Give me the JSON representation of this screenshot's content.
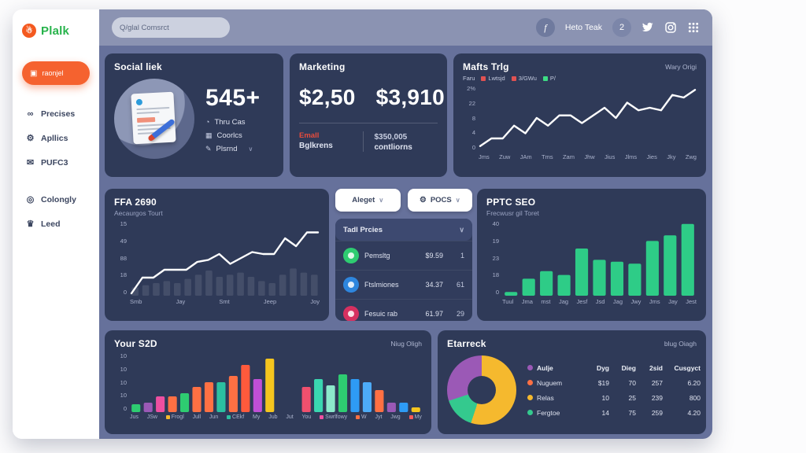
{
  "sidebar": {
    "logo_text": "Plalk",
    "active": {
      "label": "raonjel"
    },
    "items": [
      {
        "id": "precises",
        "icon": "nodes-icon",
        "glyph": "∞",
        "label": "Precises",
        "gap_before": false
      },
      {
        "id": "apllics",
        "icon": "gear-icon",
        "glyph": "⚙",
        "label": "Apllics",
        "gap_before": false
      },
      {
        "id": "pufc3",
        "icon": "mail-icon",
        "glyph": "✉",
        "label": "PUFC3",
        "gap_before": false
      },
      {
        "id": "colongly",
        "icon": "target-icon",
        "glyph": "◎",
        "label": "Colongly",
        "gap_before": true
      },
      {
        "id": "leed",
        "icon": "crown-icon",
        "glyph": "♛",
        "label": "Leed",
        "gap_before": false
      }
    ]
  },
  "header": {
    "search_placeholder": "Q/glal Comsrct",
    "user_name": "Heto Teak",
    "badge_count": "2"
  },
  "social": {
    "title": "Social liek",
    "count": "545+",
    "items": [
      {
        "icon": "clock-icon",
        "glyph": "◔",
        "label": "Thru Cas",
        "chevron": false
      },
      {
        "icon": "calendar-icon",
        "glyph": "▦",
        "label": "Coorlcs",
        "chevron": false
      },
      {
        "icon": "pen-icon",
        "glyph": "✎",
        "label": "Plsrnd",
        "chevron": true
      }
    ]
  },
  "marketing": {
    "title": "Marketing",
    "value_left": "$2,50",
    "value_right": "$3,910",
    "foot_left_top": "Emall",
    "foot_left_bottom": "Bglkrens",
    "foot_right_top": "$350,005",
    "foot_right_bottom": "contliorns"
  },
  "mafts": {
    "title": "Mafts Trlg",
    "corner": "Wary Origi",
    "legend_prefix": "Faru",
    "legend": [
      {
        "label": "Lwtsjd",
        "color": "#e05252"
      },
      {
        "label": "3/GWu",
        "color": "#e05252"
      },
      {
        "label": "P/",
        "color": "#3ddc84"
      }
    ]
  },
  "ffa": {
    "title": "FFA 2690",
    "subtitle": "Aecaurgos Tourt"
  },
  "tools": {
    "dropdown1": "Aleget",
    "dropdown2": "POCS",
    "list_header": "Tadl Prcies",
    "rows": [
      {
        "color": "#2ecc71",
        "name": "Pemsltg",
        "value": "$9.59",
        "count": "1"
      },
      {
        "color": "#2e86de",
        "name": "Ftslmiones",
        "value": "34.37",
        "count": "61"
      },
      {
        "color": "#d63060",
        "name": "Fesuic rab",
        "value": "61.97",
        "count": "29"
      }
    ]
  },
  "pptc": {
    "title": "PPTC SEO",
    "subtitle": "Frecwusr gil Toret"
  },
  "s2d": {
    "title": "Your S2D",
    "corner": "Niug Oligh"
  },
  "etarreck": {
    "title": "Etarreck",
    "corner": "blug Oiagh",
    "table": {
      "header": {
        "dot": "#9b59b6",
        "name": "Aulje",
        "cols": [
          "Dyg",
          "Dieg",
          "2sid",
          "Cusgyct"
        ]
      },
      "rows": [
        {
          "dot": "#ff7043",
          "name": "Nuguem",
          "cols": [
            "$19",
            "70",
            "257",
            "6.20"
          ]
        },
        {
          "dot": "#f5b92e",
          "name": "Relas",
          "cols": [
            "10",
            "25",
            "239",
            "800"
          ]
        },
        {
          "dot": "#34c98e",
          "name": "Fergtoe",
          "cols": [
            "14",
            "75",
            "259",
            "4.20"
          ]
        }
      ]
    }
  },
  "chart_data": [
    {
      "id": "mafts",
      "type": "line",
      "title": "Mafts Trlg",
      "values": [
        1,
        4,
        4,
        9,
        6,
        12,
        9,
        13,
        13,
        10,
        13,
        16,
        12,
        18,
        15,
        16,
        15,
        21,
        20,
        23
      ],
      "ylim": [
        0,
        24
      ],
      "yticks": [
        "2%",
        "22",
        "8",
        "4",
        "0"
      ],
      "xlabels": [
        "Jms",
        "Zuw",
        "JAm",
        "Tms",
        "Zam",
        "Jhw",
        "Jius",
        "Jlms",
        "Jies",
        "Jky",
        "Zwg"
      ],
      "line_color": "#ffffff",
      "grid": false,
      "legend_position": "top-left"
    },
    {
      "id": "ffa",
      "type": "line",
      "title": "FFA 2690",
      "values": [
        0,
        8,
        8,
        12,
        12,
        12,
        16,
        17,
        20,
        15,
        18,
        21,
        20,
        20,
        28,
        24,
        31,
        31
      ],
      "bars": [
        4,
        5,
        6,
        7,
        6,
        8,
        10,
        12,
        9,
        10,
        11,
        9,
        7,
        6,
        10,
        13,
        11,
        10
      ],
      "ylim": [
        0,
        36
      ],
      "yticks": [
        "15",
        "49",
        "88",
        "18",
        "0"
      ],
      "xlabels": [
        "Smb",
        "Jay",
        "Smt",
        "Jeep",
        "Joy"
      ],
      "line_color": "#ffffff",
      "bar_color": "rgba(255,255,255,0.10)"
    },
    {
      "id": "pptc",
      "type": "bar",
      "title": "PPTC SEO",
      "values": [
        2,
        9,
        13,
        11,
        25,
        19,
        18,
        17,
        29,
        32,
        38
      ],
      "ylim": [
        0,
        40
      ],
      "yticks": [
        "40",
        "19",
        "23",
        "18",
        "0"
      ],
      "xlabels": [
        "Tuul",
        "Jma",
        "mst",
        "Jag",
        "Jesf",
        "Jsd",
        "Jag",
        "Jwy",
        "Jms",
        "Jay",
        "Jest"
      ],
      "bar_color": "#2ecc87"
    },
    {
      "id": "s2d",
      "type": "bar",
      "title": "Your S2D",
      "ylim": [
        0,
        38
      ],
      "yticks": [
        "10",
        "10",
        "10",
        "10",
        "0"
      ],
      "series": [
        {
          "v": 5,
          "c": "#2ecc71"
        },
        {
          "v": 6,
          "c": "#9b59b6"
        },
        {
          "v": 10,
          "c": "#ee4fa1"
        },
        {
          "v": 10,
          "c": "#ff7043"
        },
        {
          "v": 12,
          "c": "#2ecc71"
        },
        {
          "v": 16,
          "c": "#ff7043"
        },
        {
          "v": 19,
          "c": "#ff7043"
        },
        {
          "v": 19,
          "c": "#2bbfa0"
        },
        {
          "v": 23,
          "c": "#ff7043"
        },
        {
          "v": 30,
          "c": "#ff5a3c"
        },
        {
          "v": 21,
          "c": "#c04fd6"
        },
        {
          "v": 34,
          "c": "#f5c51e"
        },
        null,
        null,
        {
          "v": 16,
          "c": "#f0506e"
        },
        {
          "v": 21,
          "c": "#3ad6b0"
        },
        {
          "v": 17,
          "c": "#8ce8cb"
        },
        {
          "v": 24,
          "c": "#2ecc71"
        },
        {
          "v": 21,
          "c": "#2e9bf5"
        },
        {
          "v": 19,
          "c": "#4dabf7"
        },
        {
          "v": 14,
          "c": "#ff7043"
        },
        {
          "v": 6,
          "c": "#9b59b6"
        },
        {
          "v": 6,
          "c": "#2e9bf5"
        },
        {
          "v": 3,
          "c": "#f5c51e"
        }
      ],
      "xlabels": [
        {
          "t": "Jus"
        },
        {
          "t": "JSw"
        },
        {
          "t": "Frogl",
          "dot": "#f5b92e"
        },
        {
          "t": "Jull"
        },
        {
          "t": "Jun"
        },
        {
          "t": "CEkf",
          "dot": "#2bbfa0"
        },
        {
          "t": "My"
        },
        {
          "t": "Jub"
        },
        {
          "t": "Jut"
        },
        {
          "t": "You"
        },
        {
          "t": "Swrlfowy",
          "dot": "#ee4fa1"
        },
        {
          "t": "W",
          "dot": "#ff7043"
        },
        {
          "t": "Jyt"
        },
        {
          "t": "Jwg"
        },
        {
          "t": "My",
          "dot": "#ff5a5a"
        }
      ]
    },
    {
      "id": "etarreck",
      "type": "pie",
      "title": "Etarreck",
      "slices": [
        {
          "label": "Relas",
          "value": 55,
          "color": "#f5b92e"
        },
        {
          "label": "Fergtoe",
          "value": 15,
          "color": "#34c98e"
        },
        {
          "label": "Aulje",
          "value": 30,
          "color": "#9b59b6"
        }
      ]
    }
  ]
}
